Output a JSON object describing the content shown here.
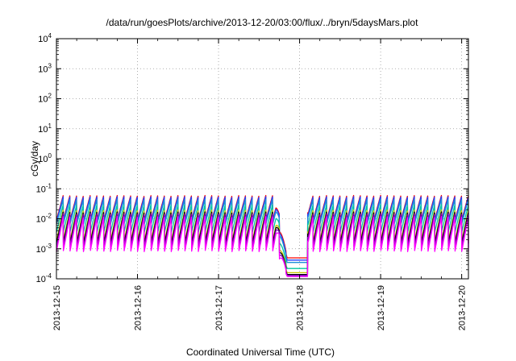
{
  "chart_data": {
    "type": "line",
    "title": "/data/run/goesPlots/archive/2013-12-20/03:00/flux/../bryn/5daysMars.plot",
    "xlabel": "Coordinated Universal Time (UTC)",
    "ylabel": "cGy/day",
    "y_scale": "log",
    "ylim": [
      0.0001,
      10000
    ],
    "xlim": [
      "2013-12-15",
      "2013-12-20T02:00"
    ],
    "grid": true,
    "x_ticks": [
      "2013-12-15",
      "2013-12-16",
      "2013-12-17",
      "2013-12-18",
      "2013-12-19",
      "2013-12-20"
    ],
    "y_ticks": [
      {
        "base": "10",
        "exp": "-4"
      },
      {
        "base": "10",
        "exp": "-3"
      },
      {
        "base": "10",
        "exp": "-2"
      },
      {
        "base": "10",
        "exp": "-1"
      },
      {
        "base": "10",
        "exp": "0"
      },
      {
        "base": "10",
        "exp": "1"
      },
      {
        "base": "10",
        "exp": "2"
      },
      {
        "base": "10",
        "exp": "3"
      },
      {
        "base": "10",
        "exp": "4"
      }
    ],
    "pattern": {
      "cycles_per_day": 12,
      "dip_start": "2013-12-17T17:00",
      "dip_end": "2013-12-18T02:30",
      "note_removed": true
    },
    "series": [
      {
        "color": "#ff0000",
        "peak": 0.06,
        "trough": 0.009,
        "dip_min": 0.0005
      },
      {
        "color": "#1f3fff",
        "peak": 0.055,
        "trough": 0.008,
        "dip_min": 0.00042
      },
      {
        "color": "#1e90d8",
        "peak": 0.045,
        "trough": 0.0065,
        "dip_min": 0.00035
      },
      {
        "color": "#00c8a0",
        "peak": 0.03,
        "trough": 0.0035,
        "dip_min": 0.00022
      },
      {
        "color": "#c8c800",
        "peak": 0.02,
        "trough": 0.0018,
        "dip_min": 0.00016
      },
      {
        "color": "#000000",
        "peak": 0.017,
        "trough": 0.0015,
        "dip_min": 0.00014
      },
      {
        "color": "#8000c0",
        "peak": 0.015,
        "trough": 0.0011,
        "dip_min": 0.00013
      },
      {
        "color": "#ff00ff",
        "peak": 0.012,
        "trough": 0.0008,
        "dip_min": 0.00012
      }
    ]
  }
}
